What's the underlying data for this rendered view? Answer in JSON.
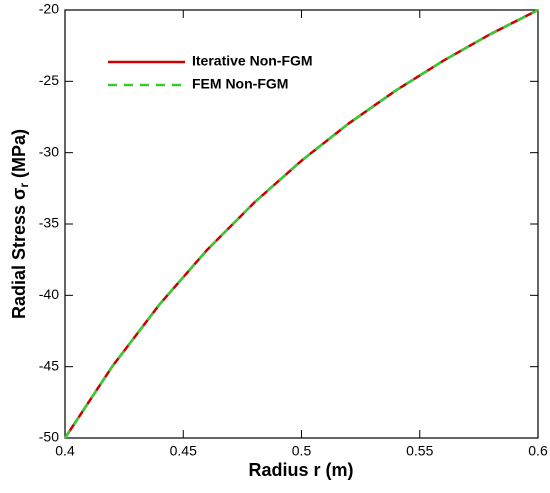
{
  "chart_data": {
    "type": "line",
    "xlabel": "Radius r (m)",
    "ylabel_parts": [
      "Radial Stress σ",
      "r",
      " (MPa)"
    ],
    "x": [
      0.4,
      0.42,
      0.44,
      0.46,
      0.48,
      0.5,
      0.52,
      0.54,
      0.56,
      0.58,
      0.6
    ],
    "series": [
      {
        "name": "Iterative Non-FGM",
        "color": "#cc0000",
        "dash": false,
        "values": [
          -50,
          -44.98,
          -40.63,
          -36.83,
          -33.5,
          -30.56,
          -27.95,
          -25.63,
          -23.55,
          -21.68,
          -20
        ]
      },
      {
        "name": "FEM Non-FGM",
        "color": "#33cc33",
        "dash": true,
        "values": [
          -50,
          -44.98,
          -40.63,
          -36.83,
          -33.5,
          -30.56,
          -27.95,
          -25.63,
          -23.55,
          -21.68,
          -20
        ]
      }
    ],
    "xlim": [
      0.4,
      0.6
    ],
    "xticks": [
      0.4,
      0.45,
      0.5,
      0.55,
      0.6
    ],
    "ylim": [
      -50,
      -20
    ],
    "yticks": [
      -50,
      -45,
      -40,
      -35,
      -30,
      -25,
      -20
    ],
    "legend": "upper left",
    "grid": false
  }
}
